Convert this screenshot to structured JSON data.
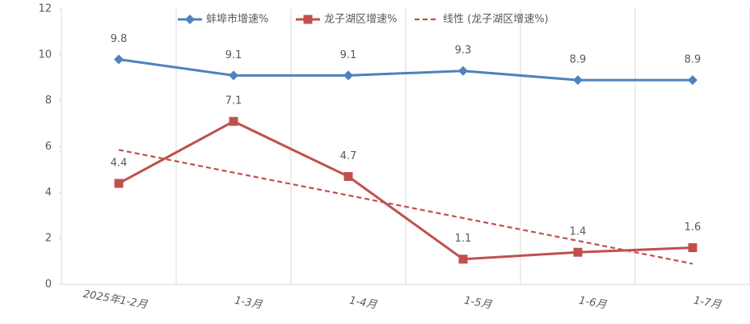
{
  "chart_data": {
    "type": "line",
    "categories": [
      "2025年1-2月",
      "1-3月",
      "1-4月",
      "1-5月",
      "1-6月",
      "1-7月"
    ],
    "series": [
      {
        "name": "蚌埠市增速%",
        "color": "#4f81bd",
        "marker": "diamond",
        "data_labels": true,
        "values": [
          9.8,
          9.1,
          9.1,
          9.3,
          8.9,
          8.9
        ]
      },
      {
        "name": "龙子湖区增速%",
        "color": "#c0504d",
        "marker": "square",
        "data_labels": true,
        "values": [
          4.4,
          7.1,
          4.7,
          1.1,
          1.4,
          1.6
        ]
      },
      {
        "name": "线性 (龙子湖区增速%)",
        "color": "#c0504d",
        "dashed": true,
        "values": [
          5.86,
          4.87,
          3.88,
          2.89,
          1.9,
          0.9
        ]
      }
    ],
    "ylim": [
      0,
      12
    ],
    "yticks": [
      0,
      2,
      4,
      6,
      8,
      10,
      12
    ],
    "vertical_grid": true
  }
}
